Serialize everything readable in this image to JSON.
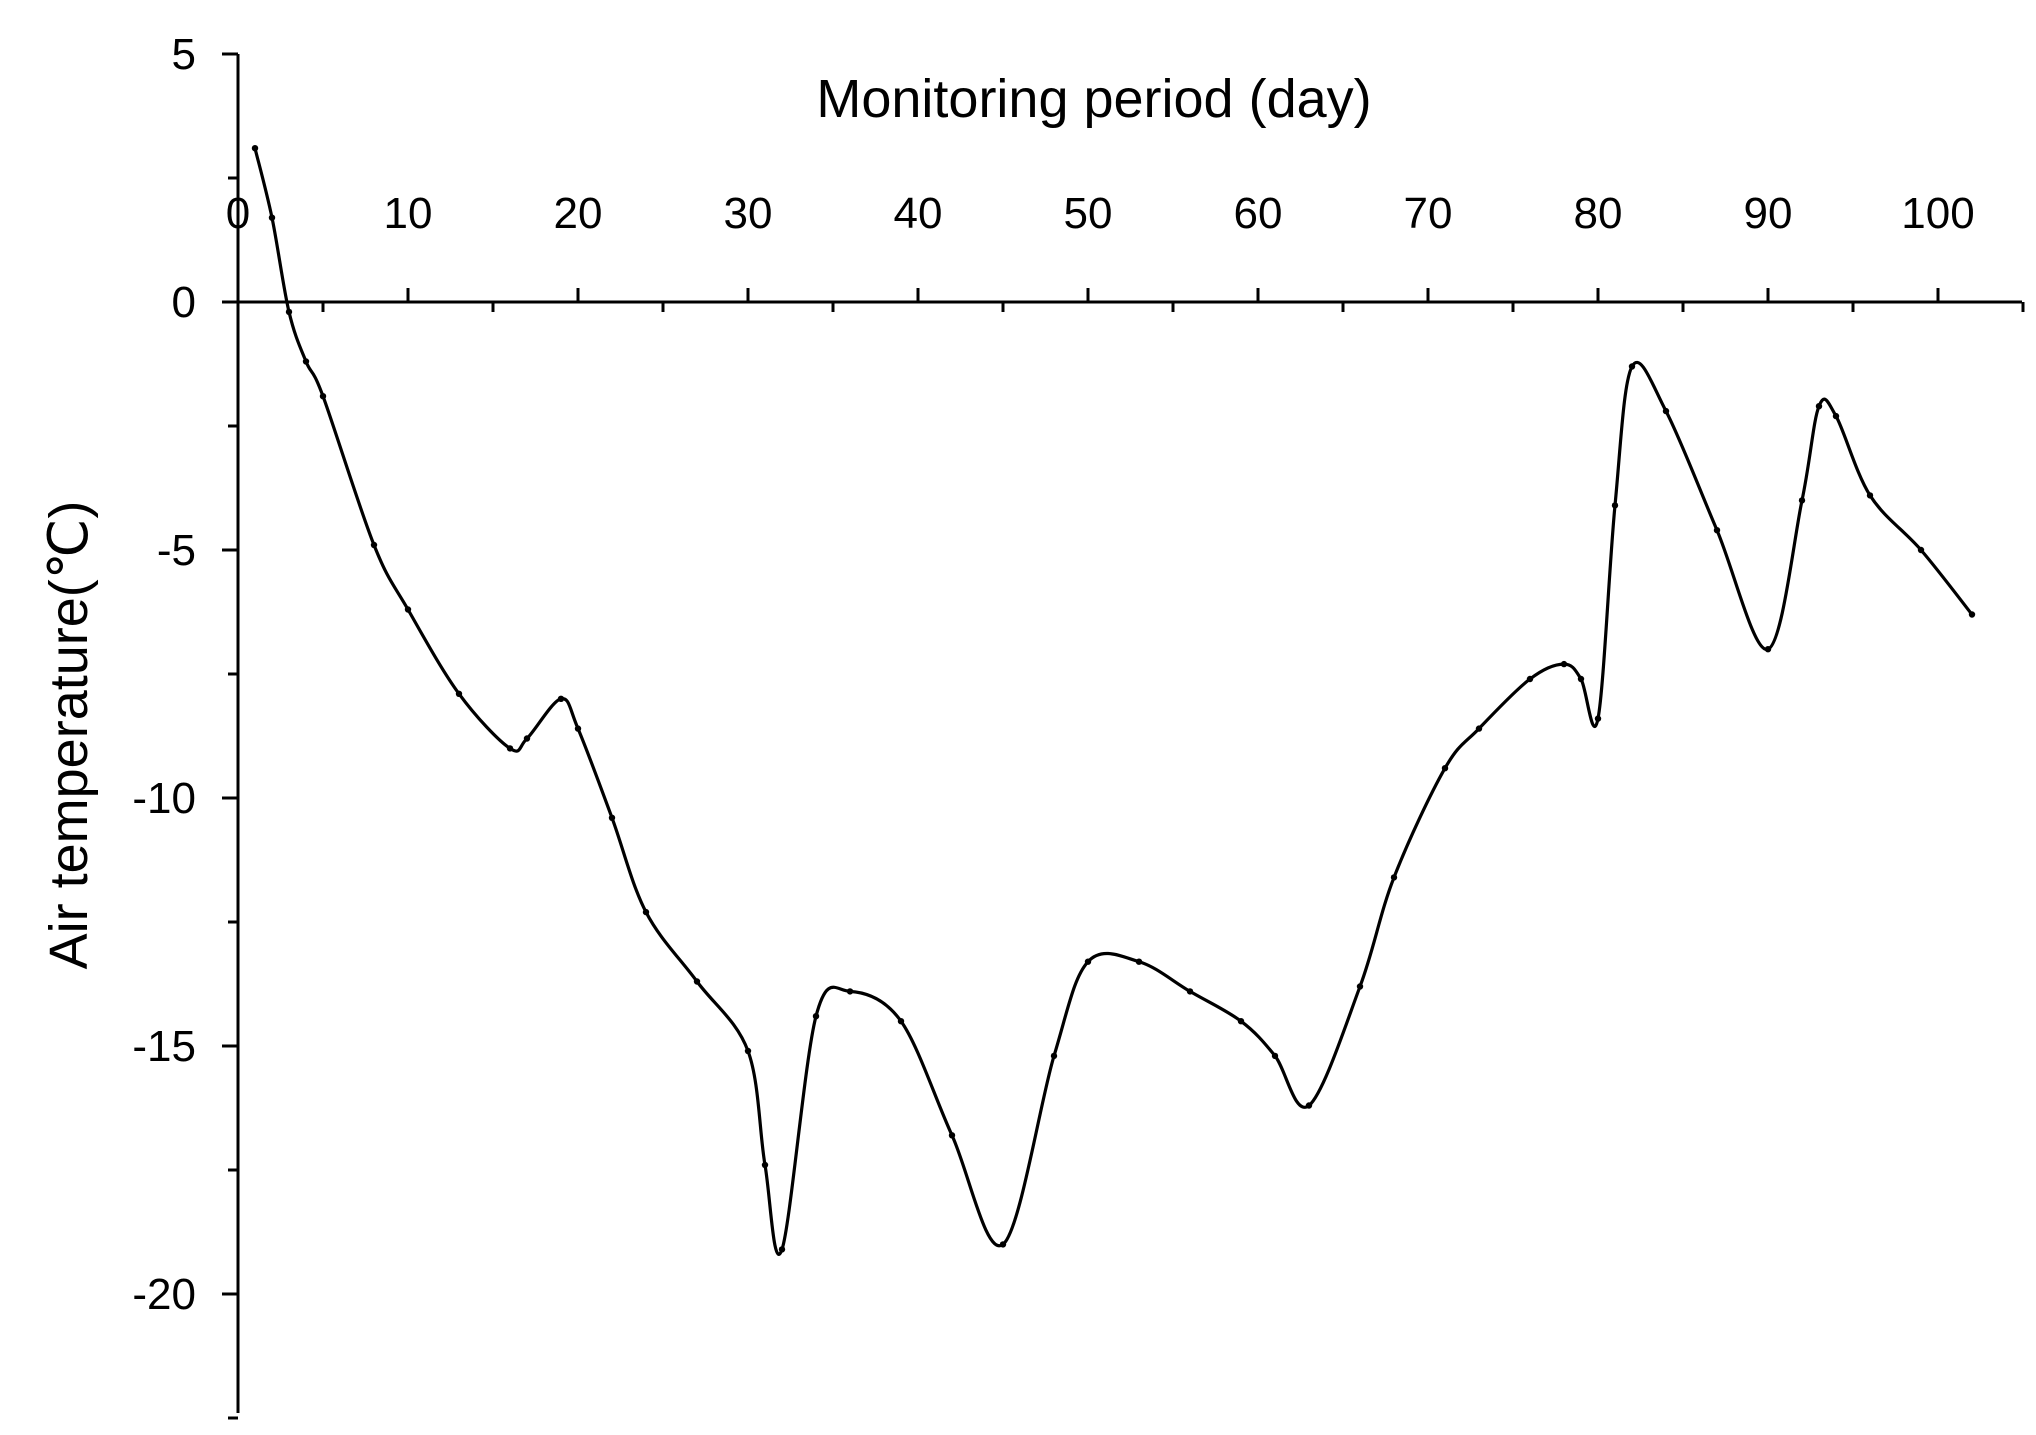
{
  "chart_data": {
    "type": "line",
    "xlabel": "Monitoring period (day)",
    "ylabel": "Air temperature(℃)",
    "xlim": [
      0,
      105
    ],
    "ylim": [
      -22.5,
      5
    ],
    "x_ticks": [
      0,
      10,
      20,
      30,
      40,
      50,
      60,
      70,
      80,
      90,
      100
    ],
    "y_ticks": [
      5,
      0,
      -5,
      -10,
      -15,
      -20
    ],
    "x_tick_labels": [
      "0",
      "10",
      "20",
      "30",
      "40",
      "50",
      "60",
      "70",
      "80",
      "90",
      "100"
    ],
    "y_tick_labels": [
      "5",
      "0",
      "-5",
      "-10",
      "-15",
      "-20"
    ],
    "grid": false,
    "series": [
      {
        "x": [
          1,
          2,
          3,
          4,
          5,
          8,
          10,
          13,
          16,
          17,
          19,
          20,
          22,
          24,
          27,
          30,
          31,
          32,
          34,
          36,
          39,
          42,
          45,
          48,
          50,
          53,
          56,
          59,
          61,
          63,
          66,
          68,
          71,
          73,
          76,
          78,
          79,
          80,
          81,
          82,
          84,
          87,
          90,
          92,
          93,
          94,
          96,
          99,
          102
        ],
        "y": [
          3.1,
          1.7,
          -0.2,
          -1.2,
          -1.9,
          -4.9,
          -6.2,
          -7.9,
          -9.0,
          -8.8,
          -8.0,
          -8.6,
          -10.4,
          -12.3,
          -13.7,
          -15.1,
          -17.4,
          -19.1,
          -14.4,
          -13.9,
          -14.5,
          -16.8,
          -19.0,
          -15.2,
          -13.3,
          -13.3,
          -13.9,
          -14.5,
          -15.2,
          -16.2,
          -13.8,
          -11.6,
          -9.4,
          -8.6,
          -7.6,
          -7.3,
          -7.6,
          -8.4,
          -4.1,
          -1.3,
          -2.2,
          -4.6,
          -7.0,
          -4.0,
          -2.1,
          -2.3,
          -3.9,
          -5.0,
          -6.3
        ]
      }
    ]
  }
}
